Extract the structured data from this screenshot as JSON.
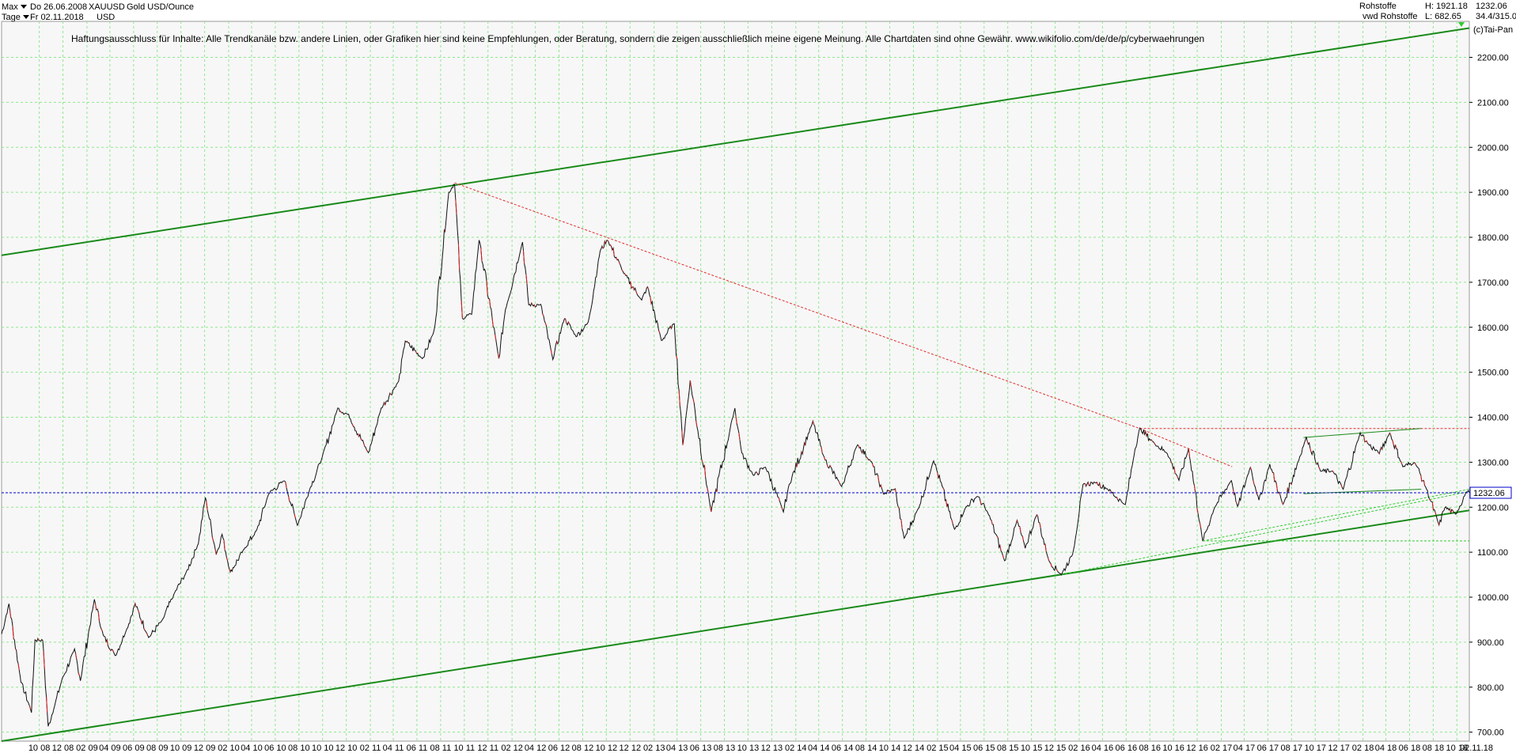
{
  "header": {
    "range_label": "Max",
    "period_label": "Tage",
    "date_from": "Do 26.06.2008",
    "date_to": "Fr 02.11.2018",
    "symbol": "XAUUSD",
    "name": "Gold USD/Ounce",
    "currency": "USD",
    "exchange": "Rohstoffe",
    "exchange2": "vwd Rohstoffe",
    "high": "H: 1921.18",
    "low": "L: 682.65",
    "last": "1232.06",
    "extra": "34.4/315.0",
    "copyright": "(c)Tai-Pan"
  },
  "disclaimer": "Haftungsausschluss für Inhalte: Alle Trendkanäle bzw. andere Linien, oder Grafiken hier sind keine Empfehlungen, oder Beratung, sondern die zeigen ausschließlich meine eigene Meinung. Alle Chartdaten sind ohne Gewähr.  www.wikifolio.com/de/de/p/cyberwaehrungen",
  "chart_data": {
    "type": "line",
    "title": "Gold USD/Ounce",
    "ylim": [
      680,
      2280
    ],
    "xlim": [
      "2008-06-26",
      "2018-11-02"
    ],
    "grid": true,
    "last_value": 1232.06,
    "last_value_label": "1232.06",
    "y_ticks": [
      "700.00",
      "800.00",
      "900.00",
      "1000.00",
      "1100.00",
      "1200.00",
      "1300.00",
      "1400.00",
      "1500.00",
      "1600.00",
      "1700.00",
      "1800.00",
      "1900.00",
      "2000.00",
      "2100.00",
      "2200.00"
    ],
    "y_tick_values": [
      700,
      800,
      900,
      1000,
      1100,
      1200,
      1300,
      1400,
      1500,
      1600,
      1700,
      1800,
      1900,
      2000,
      2100,
      2200
    ],
    "x_ticks": [
      "10 08",
      "12 08",
      "02 09",
      "04 09",
      "06 09",
      "08 09",
      "10 09",
      "12 09",
      "02 10",
      "04 10",
      "06 10",
      "08 10",
      "10 10",
      "12 10",
      "02 11",
      "04 11",
      "06 11",
      "08 11",
      "10 11",
      "12 11",
      "02 12",
      "04 12",
      "06 12",
      "08 12",
      "10 12",
      "12 12",
      "02 13",
      "04 13",
      "06 13",
      "08 13",
      "10 13",
      "12 13",
      "02 14",
      "04 14",
      "06 14",
      "08 14",
      "10 14",
      "12 14",
      "02 15",
      "04 15",
      "06 15",
      "08 15",
      "10 15",
      "12 15",
      "02 16",
      "04 16",
      "06 16",
      "08 16",
      "10 16",
      "12 16",
      "02 17",
      "04 17",
      "06 17",
      "08 17",
      "10 17",
      "12 17",
      "02 18",
      "04 18",
      "06 18",
      "08 18",
      "10 18",
      "–",
      "02.11.18"
    ],
    "x_tick_dates": [
      "2008-10-01",
      "2008-12-01",
      "2009-02-01",
      "2009-04-01",
      "2009-06-01",
      "2009-08-01",
      "2009-10-01",
      "2009-12-01",
      "2010-02-01",
      "2010-04-01",
      "2010-06-01",
      "2010-08-01",
      "2010-10-01",
      "2010-12-01",
      "2011-02-01",
      "2011-04-01",
      "2011-06-01",
      "2011-08-01",
      "2011-10-01",
      "2011-12-01",
      "2012-02-01",
      "2012-04-01",
      "2012-06-01",
      "2012-08-01",
      "2012-10-01",
      "2012-12-01",
      "2013-02-01",
      "2013-04-01",
      "2013-06-01",
      "2013-08-01",
      "2013-10-01",
      "2013-12-01",
      "2014-02-01",
      "2014-04-01",
      "2014-06-01",
      "2014-08-01",
      "2014-10-01",
      "2014-12-01",
      "2015-02-01",
      "2015-04-01",
      "2015-06-01",
      "2015-08-01",
      "2015-10-01",
      "2015-12-01",
      "2016-02-01",
      "2016-04-01",
      "2016-06-01",
      "2016-08-01",
      "2016-10-01",
      "2016-12-01",
      "2017-02-01",
      "2017-04-01",
      "2017-06-01",
      "2017-08-01",
      "2017-10-01",
      "2017-12-01",
      "2018-02-01",
      "2018-04-01",
      "2018-06-01",
      "2018-08-01",
      "2018-10-01",
      "2018-10-20",
      "2018-11-02"
    ],
    "series": [
      {
        "values": [
          [
            "2008-06-26",
            918
          ],
          [
            "2008-07-15",
            985
          ],
          [
            "2008-08-15",
            812
          ],
          [
            "2008-09-11",
            745
          ],
          [
            "2008-09-20",
            905
          ],
          [
            "2008-10-10",
            905
          ],
          [
            "2008-10-24",
            712
          ],
          [
            "2008-11-10",
            760
          ],
          [
            "2008-11-28",
            815
          ],
          [
            "2008-12-31",
            884
          ],
          [
            "2009-01-15",
            815
          ],
          [
            "2009-02-20",
            995
          ],
          [
            "2009-03-15",
            915
          ],
          [
            "2009-04-15",
            870
          ],
          [
            "2009-05-15",
            930
          ],
          [
            "2009-06-05",
            985
          ],
          [
            "2009-07-10",
            910
          ],
          [
            "2009-08-15",
            950
          ],
          [
            "2009-09-15",
            1010
          ],
          [
            "2009-10-15",
            1055
          ],
          [
            "2009-11-15",
            1120
          ],
          [
            "2009-12-03",
            1222
          ],
          [
            "2009-12-31",
            1095
          ],
          [
            "2010-01-15",
            1140
          ],
          [
            "2010-02-05",
            1055
          ],
          [
            "2010-03-15",
            1110
          ],
          [
            "2010-04-15",
            1150
          ],
          [
            "2010-05-15",
            1230
          ],
          [
            "2010-06-25",
            1260
          ],
          [
            "2010-07-28",
            1160
          ],
          [
            "2010-08-31",
            1245
          ],
          [
            "2010-09-30",
            1310
          ],
          [
            "2010-11-09",
            1420
          ],
          [
            "2010-12-07",
            1405
          ],
          [
            "2011-01-27",
            1320
          ],
          [
            "2011-03-01",
            1420
          ],
          [
            "2011-04-15",
            1480
          ],
          [
            "2011-05-02",
            1570
          ],
          [
            "2011-06-15",
            1530
          ],
          [
            "2011-07-15",
            1590
          ],
          [
            "2011-08-22",
            1900
          ],
          [
            "2011-09-06",
            1921
          ],
          [
            "2011-09-26",
            1620
          ],
          [
            "2011-10-20",
            1630
          ],
          [
            "2011-11-08",
            1795
          ],
          [
            "2011-12-29",
            1530
          ],
          [
            "2012-01-15",
            1640
          ],
          [
            "2012-02-28",
            1790
          ],
          [
            "2012-03-15",
            1650
          ],
          [
            "2012-04-15",
            1650
          ],
          [
            "2012-05-16",
            1530
          ],
          [
            "2012-06-15",
            1620
          ],
          [
            "2012-07-15",
            1580
          ],
          [
            "2012-08-15",
            1610
          ],
          [
            "2012-09-15",
            1770
          ],
          [
            "2012-10-04",
            1795
          ],
          [
            "2012-11-15",
            1720
          ],
          [
            "2012-12-31",
            1660
          ],
          [
            "2013-01-15",
            1690
          ],
          [
            "2013-02-20",
            1570
          ],
          [
            "2013-03-25",
            1610
          ],
          [
            "2013-04-16",
            1340
          ],
          [
            "2013-05-05",
            1480
          ],
          [
            "2013-06-28",
            1190
          ],
          [
            "2013-08-28",
            1420
          ],
          [
            "2013-09-15",
            1320
          ],
          [
            "2013-10-15",
            1270
          ],
          [
            "2013-11-15",
            1290
          ],
          [
            "2013-12-31",
            1190
          ],
          [
            "2014-01-15",
            1250
          ],
          [
            "2014-03-17",
            1390
          ],
          [
            "2014-04-15",
            1310
          ],
          [
            "2014-05-30",
            1245
          ],
          [
            "2014-07-10",
            1340
          ],
          [
            "2014-08-15",
            1300
          ],
          [
            "2014-09-15",
            1230
          ],
          [
            "2014-10-15",
            1240
          ],
          [
            "2014-11-07",
            1130
          ],
          [
            "2014-12-15",
            1200
          ],
          [
            "2015-01-22",
            1305
          ],
          [
            "2015-03-17",
            1150
          ],
          [
            "2015-04-15",
            1200
          ],
          [
            "2015-05-15",
            1225
          ],
          [
            "2015-06-15",
            1180
          ],
          [
            "2015-07-24",
            1080
          ],
          [
            "2015-08-25",
            1170
          ],
          [
            "2015-09-15",
            1110
          ],
          [
            "2015-10-15",
            1185
          ],
          [
            "2015-11-15",
            1080
          ],
          [
            "2015-12-17",
            1050
          ],
          [
            "2016-01-15",
            1095
          ],
          [
            "2016-02-11",
            1250
          ],
          [
            "2016-03-15",
            1255
          ],
          [
            "2016-04-15",
            1240
          ],
          [
            "2016-05-30",
            1205
          ],
          [
            "2016-06-24",
            1330
          ],
          [
            "2016-07-06",
            1375
          ],
          [
            "2016-08-15",
            1340
          ],
          [
            "2016-09-15",
            1320
          ],
          [
            "2016-10-15",
            1260
          ],
          [
            "2016-11-09",
            1330
          ],
          [
            "2016-12-15",
            1125
          ],
          [
            "2017-01-15",
            1200
          ],
          [
            "2017-02-27",
            1260
          ],
          [
            "2017-03-15",
            1200
          ],
          [
            "2017-04-17",
            1290
          ],
          [
            "2017-05-09",
            1215
          ],
          [
            "2017-06-06",
            1295
          ],
          [
            "2017-07-10",
            1205
          ],
          [
            "2017-09-08",
            1355
          ],
          [
            "2017-10-15",
            1280
          ],
          [
            "2017-11-15",
            1280
          ],
          [
            "2017-12-12",
            1240
          ],
          [
            "2018-01-25",
            1365
          ],
          [
            "2018-02-15",
            1340
          ],
          [
            "2018-03-15",
            1320
          ],
          [
            "2018-04-11",
            1365
          ],
          [
            "2018-05-15",
            1290
          ],
          [
            "2018-06-15",
            1300
          ],
          [
            "2018-07-15",
            1240
          ],
          [
            "2018-08-16",
            1160
          ],
          [
            "2018-08-31",
            1200
          ],
          [
            "2018-09-28",
            1185
          ],
          [
            "2018-10-26",
            1235
          ],
          [
            "2018-11-02",
            1232
          ]
        ]
      }
    ],
    "trendlines": [
      {
        "color": "#1a8a1a",
        "style": "solid",
        "width": 2,
        "points": [
          [
            "2008-06-26",
            1760
          ],
          [
            "2018-11-02",
            2265
          ]
        ]
      },
      {
        "color": "#1a8a1a",
        "style": "solid",
        "width": 2,
        "points": [
          [
            "2008-06-26",
            680
          ],
          [
            "2018-11-02",
            1193
          ]
        ]
      },
      {
        "color": "#e03030",
        "style": "dashed",
        "width": 1,
        "points": [
          [
            "2011-09-06",
            1921
          ],
          [
            "2016-07-06",
            1375
          ]
        ]
      },
      {
        "color": "#e03030",
        "style": "dashed",
        "width": 1,
        "points": [
          [
            "2016-07-06",
            1375
          ],
          [
            "2018-11-02",
            1375
          ]
        ]
      },
      {
        "color": "#e03030",
        "style": "dashed",
        "width": 1,
        "points": [
          [
            "2016-07-06",
            1375
          ],
          [
            "2017-03-01",
            1290
          ]
        ]
      },
      {
        "color": "#1a8a1a",
        "style": "solid",
        "width": 1,
        "points": [
          [
            "2017-09-01",
            1355
          ],
          [
            "2018-07-01",
            1375
          ]
        ]
      },
      {
        "color": "#1a8a1a",
        "style": "solid",
        "width": 1,
        "points": [
          [
            "2017-09-01",
            1230
          ],
          [
            "2018-07-01",
            1240
          ]
        ]
      },
      {
        "color": "#33cc33",
        "style": "dashed",
        "width": 1,
        "points": [
          [
            "2015-12-17",
            1050
          ],
          [
            "2018-11-02",
            1235
          ]
        ]
      },
      {
        "color": "#33cc33",
        "style": "dashed",
        "width": 1,
        "points": [
          [
            "2016-12-15",
            1125
          ],
          [
            "2018-11-02",
            1240
          ]
        ]
      },
      {
        "color": "#33cc33",
        "style": "dashed",
        "width": 1,
        "points": [
          [
            "2016-12-15",
            1125
          ],
          [
            "2018-11-02",
            1125
          ]
        ]
      }
    ],
    "last_line_color": "#0000cc"
  }
}
